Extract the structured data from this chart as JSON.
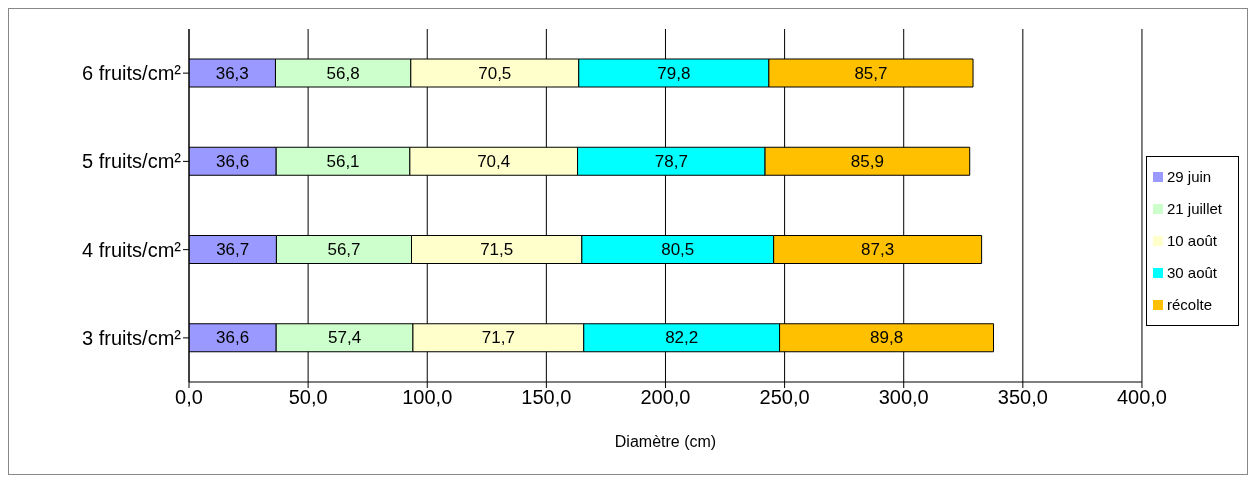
{
  "chart_data": {
    "type": "bar",
    "orientation": "horizontal",
    "stacked": true,
    "xlabel": "Diamètre (cm)",
    "categories": [
      "6 fruits/cm²",
      "5 fruits/cm²",
      "4 fruits/cm²",
      "3 fruits/cm²"
    ],
    "series": [
      {
        "name": "29 juin",
        "color": "#9999ff",
        "values": [
          36.3,
          36.6,
          36.7,
          36.6
        ],
        "value_labels": [
          "36,3",
          "36,6",
          "36,7",
          "36,6"
        ]
      },
      {
        "name": "21 juillet",
        "color": "#ccffcc",
        "values": [
          56.8,
          56.1,
          56.7,
          57.4
        ],
        "value_labels": [
          "56,8",
          "56,1",
          "56,7",
          "57,4"
        ]
      },
      {
        "name": "10 août",
        "color": "#ffffcc",
        "values": [
          70.5,
          70.4,
          71.5,
          71.7
        ],
        "value_labels": [
          "70,5",
          "70,4",
          "71,5",
          "71,7"
        ]
      },
      {
        "name": "30 août",
        "color": "#00ffff",
        "values": [
          79.8,
          78.7,
          80.5,
          82.2
        ],
        "value_labels": [
          "79,8",
          "78,7",
          "80,5",
          "82,2"
        ]
      },
      {
        "name": "récolte",
        "color": "#ffc000",
        "values": [
          85.7,
          85.9,
          87.3,
          89.8
        ],
        "value_labels": [
          "85,7",
          "85,9",
          "87,3",
          "89,8"
        ]
      }
    ],
    "xlim": [
      0,
      400
    ],
    "xticks": [
      {
        "value": 0,
        "label": "0,0"
      },
      {
        "value": 50,
        "label": "50,0"
      },
      {
        "value": 100,
        "label": "100,0"
      },
      {
        "value": 150,
        "label": "150,0"
      },
      {
        "value": 200,
        "label": "200,0"
      },
      {
        "value": 250,
        "label": "250,0"
      },
      {
        "value": 300,
        "label": "300,0"
      },
      {
        "value": 350,
        "label": "350,0"
      },
      {
        "value": 400,
        "label": "400,0"
      }
    ],
    "grid": "x",
    "legend": "right"
  }
}
